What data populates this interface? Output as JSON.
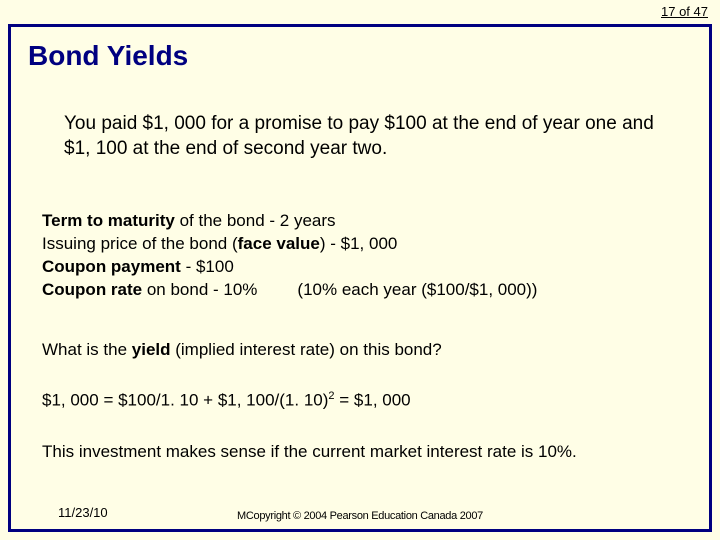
{
  "meta": {
    "page_counter": "17 of 47",
    "date": "11/23/10",
    "footer": "MCopyright © 2004 Pearson Education Canada 2007"
  },
  "title": "Bond Yields",
  "intro": "You paid $1, 000 for a promise to pay $100 at the end of year one and $1, 100 at the end of second year two.",
  "defs": {
    "l1a": "Term to maturity",
    "l1b": " of the bond - 2 years",
    "l2a": "Issuing price of the bond (",
    "l2b": "face value",
    "l2c": ") - $1, 000",
    "l3a": "Coupon payment",
    "l3b": " - $100",
    "l4a": "Coupon rate",
    "l4b": " on bond - 10%",
    "l4c": "(10% each year ($100/$1, 000))"
  },
  "question": {
    "a": "What is the ",
    "b": "yield",
    "c": " (implied interest rate) on this bond?"
  },
  "equation": {
    "a": "$1, 000 = $100/1. 10 + $1, 100/(1. 10)",
    "sup": "2",
    "b": " = $1, 000"
  },
  "conclusion": "This investment makes sense if the current market interest rate is 10%.",
  "colors": {
    "background": "#fffee6",
    "border": "#000080",
    "title": "#000080",
    "text": "#000000"
  }
}
